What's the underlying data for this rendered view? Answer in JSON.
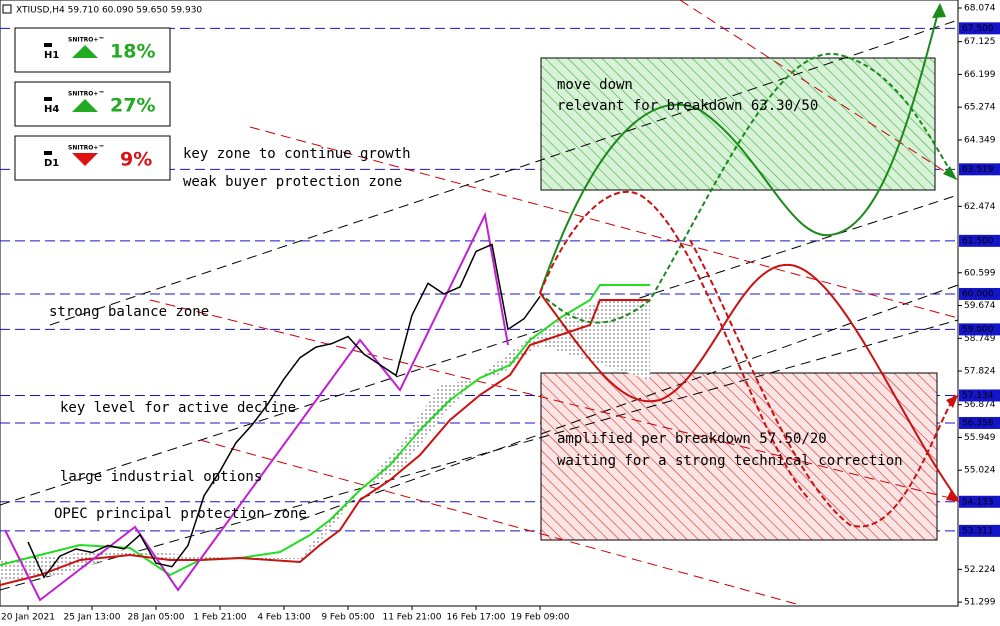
{
  "chart_data": {
    "type": "line",
    "title": "XTIUSD,H4  59.710 60.090 59.650 59.930",
    "categories": [
      "20 Jan 2021",
      null,
      null,
      null,
      "25 Jan 13:00",
      null,
      null,
      null,
      "28 Jan 05:00",
      null,
      null,
      null,
      "1 Feb 21:00",
      null,
      null,
      null,
      "4 Feb 13:00",
      null,
      null,
      null,
      "9 Feb 05:00",
      null,
      null,
      null,
      "11 Feb 21:00",
      null,
      null,
      null,
      "16 Feb 17:00",
      null,
      null,
      null,
      "19 Feb 09:00"
    ],
    "values": [
      53.0,
      52.0,
      52.6,
      52.8,
      52.7,
      52.9,
      52.8,
      53.2,
      52.4,
      52.3,
      52.9,
      54.3,
      55.0,
      55.8,
      56.3,
      56.9,
      57.6,
      58.2,
      58.5,
      58.6,
      58.8,
      58.3,
      58.0,
      57.7,
      59.4,
      60.3,
      60.0,
      60.2,
      61.2,
      61.4,
      59.0,
      59.3,
      59.93
    ],
    "color": "#000000",
    "ylim": [
      51.19,
      68.3
    ],
    "yticks": [
      51.299,
      52.224,
      55.024,
      55.949,
      56.874,
      57.824,
      58.749,
      59.674,
      60.599,
      62.474,
      64.349,
      65.274,
      66.199,
      67.125,
      68.074
    ],
    "levels": [
      {
        "value": 67.5,
        "label": "67.500"
      },
      {
        "value": 63.519,
        "label": "63.519"
      },
      {
        "value": 61.5,
        "label": "61.500"
      },
      {
        "value": 60.0,
        "label": "60.000"
      },
      {
        "value": 59.0,
        "label": "59.000"
      },
      {
        "value": 57.134,
        "label": "57.134"
      },
      {
        "value": 56.358,
        "label": "56.358"
      },
      {
        "value": 54.133,
        "label": "54.133"
      },
      {
        "value": 53.311,
        "label": "53.311"
      }
    ],
    "level_color": "#1414c8",
    "annotations": [
      "key zone to continue growth",
      "weak buyer protection zone",
      "strong balance zone",
      "key level for active decline",
      "large industrial options",
      "OPEC principal protection zone",
      "move down",
      "relevant for breakdown 63.30/50",
      "amplified per breakdown 57.50/20",
      "waiting for a strong technical correction"
    ]
  },
  "indicators": [
    {
      "timeframe": "H1",
      "brand": "SNITRO+™",
      "change": "18%",
      "trend": "up"
    },
    {
      "timeframe": "H4",
      "brand": "SNITRO+™",
      "change": "27%",
      "trend": "up"
    },
    {
      "timeframe": "D1",
      "brand": "SNITRO+™",
      "change": "9%",
      "trend": "down"
    }
  ]
}
